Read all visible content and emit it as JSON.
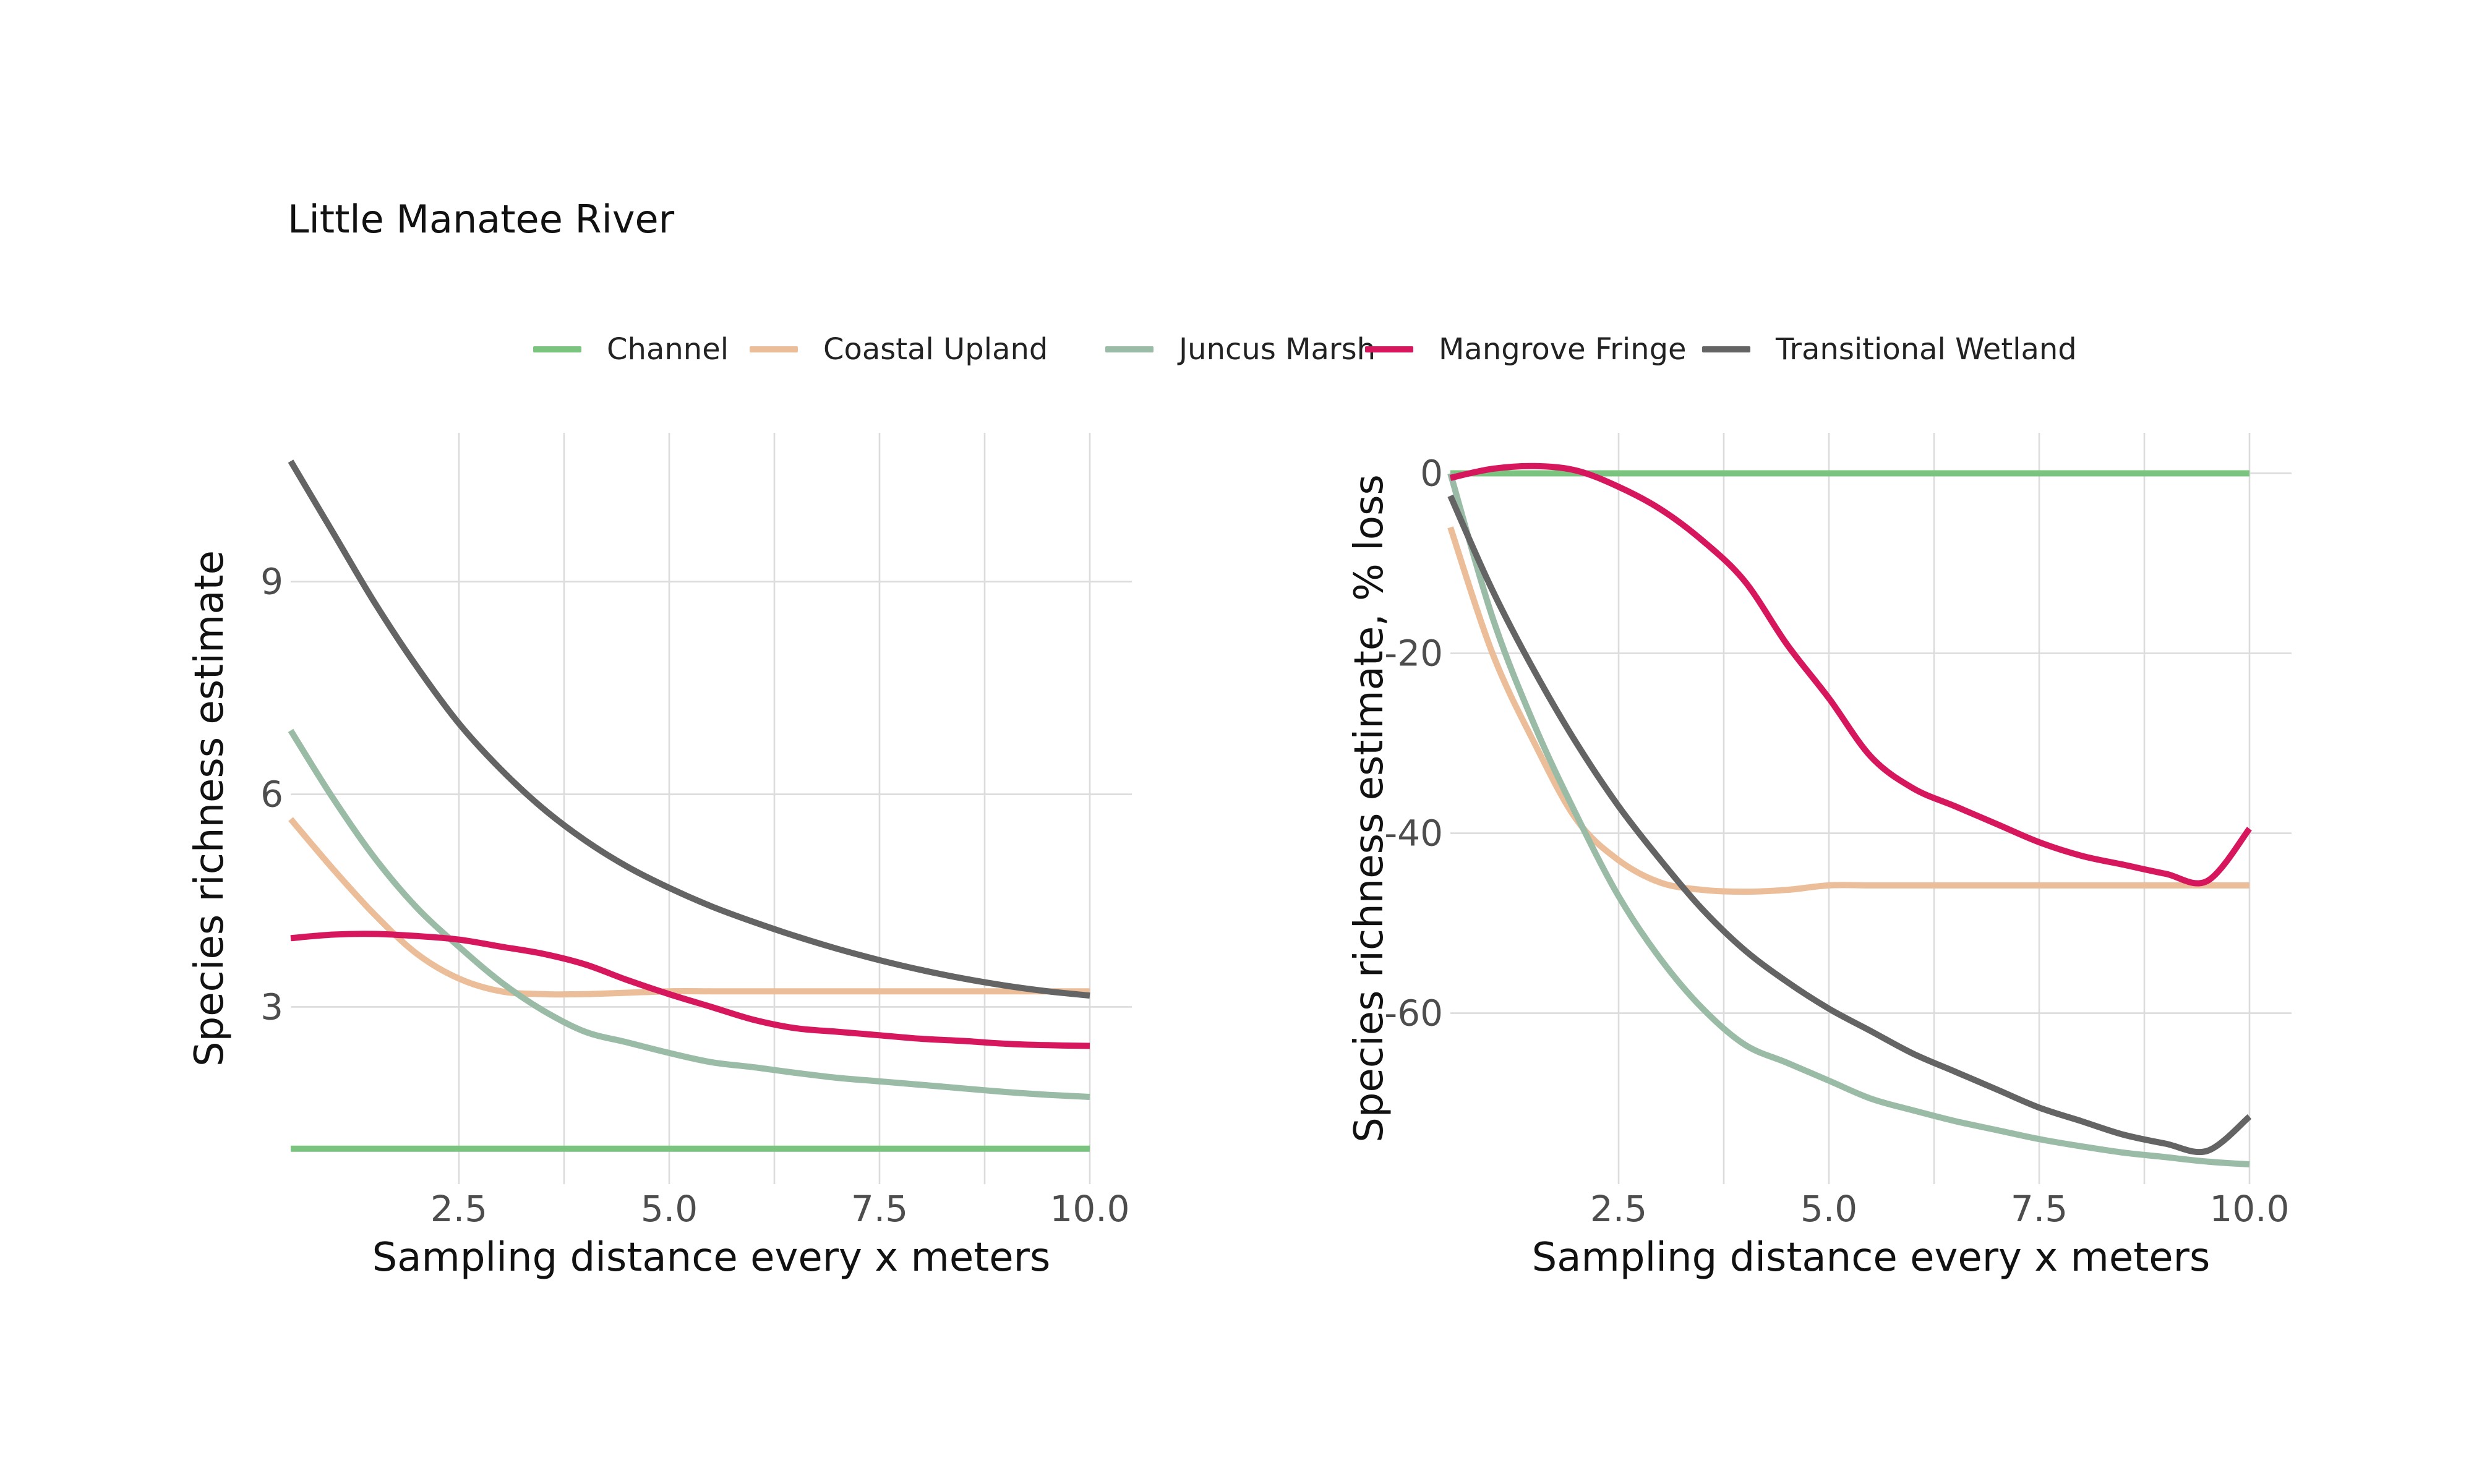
{
  "title": "Little Manatee River",
  "colors": {
    "Channel": "#7bc47f",
    "Coastal Upland": "#ebbd98",
    "Juncus Marsh": "#9abba5",
    "Mangrove Fringe": "#d6175e",
    "Transitional Wetland": "#646464"
  },
  "legend": [
    "Channel",
    "Coastal Upland",
    "Juncus Marsh",
    "Mangrove Fringe",
    "Transitional Wetland"
  ],
  "chart_data": [
    {
      "type": "line",
      "xlabel": "Sampling distance every x meters",
      "ylabel": "Species richness estimate",
      "xlim": [
        0.5,
        10.5
      ],
      "ylim": [
        0.5,
        11.1
      ],
      "xticks": [
        "2.5",
        "5.0",
        "7.5",
        "10.0"
      ],
      "yticks": [
        "3",
        "6",
        "9"
      ],
      "grid": true,
      "x": [
        0.5,
        1,
        1.5,
        2,
        2.5,
        3,
        3.5,
        4,
        4.5,
        5,
        5.5,
        6,
        6.5,
        7,
        7.5,
        8,
        8.5,
        9,
        9.5,
        10
      ],
      "series": [
        {
          "name": "Channel",
          "values": [
            1,
            1,
            1,
            1,
            1,
            1,
            1,
            1,
            1,
            1,
            1,
            1,
            1,
            1,
            1,
            1,
            1,
            1,
            1,
            1
          ]
        },
        {
          "name": "Coastal Upland",
          "values": [
            5.65,
            4.95,
            4.3,
            3.75,
            3.4,
            3.22,
            3.18,
            3.18,
            3.2,
            3.22,
            3.22,
            3.22,
            3.22,
            3.22,
            3.22,
            3.22,
            3.22,
            3.22,
            3.22,
            3.22
          ]
        },
        {
          "name": "Juncus Marsh",
          "values": [
            6.9,
            5.95,
            5.1,
            4.4,
            3.85,
            3.35,
            2.95,
            2.65,
            2.5,
            2.35,
            2.22,
            2.15,
            2.07,
            2.0,
            1.95,
            1.9,
            1.85,
            1.8,
            1.76,
            1.73
          ]
        },
        {
          "name": "Mangrove Fringe",
          "values": [
            3.97,
            4.02,
            4.03,
            4.0,
            3.95,
            3.85,
            3.75,
            3.6,
            3.38,
            3.18,
            3.0,
            2.82,
            2.7,
            2.65,
            2.6,
            2.55,
            2.52,
            2.48,
            2.46,
            2.45
          ]
        },
        {
          "name": "Transitional Wetland",
          "values": [
            10.7,
            9.7,
            8.7,
            7.8,
            7.0,
            6.35,
            5.8,
            5.35,
            4.98,
            4.68,
            4.42,
            4.2,
            4.0,
            3.82,
            3.66,
            3.52,
            3.4,
            3.3,
            3.22,
            3.16
          ]
        }
      ]
    },
    {
      "type": "line",
      "xlabel": "Sampling distance every x meters",
      "ylabel": "Species richness estimate, % loss",
      "xlim": [
        0.5,
        10.5
      ],
      "ylim": [
        -79,
        4.5
      ],
      "xticks": [
        "2.5",
        "5.0",
        "7.5",
        "10.0"
      ],
      "yticks": [
        "0",
        "-20",
        "-40",
        "-60"
      ],
      "grid": true,
      "x": [
        0.5,
        1,
        1.5,
        2,
        2.5,
        3,
        3.5,
        4,
        4.5,
        5,
        5.5,
        6,
        6.5,
        7,
        7.5,
        8,
        8.5,
        9,
        9.5,
        10
      ],
      "series": [
        {
          "name": "Channel",
          "values": [
            0,
            0,
            0,
            0,
            0,
            0,
            0,
            0,
            0,
            0,
            0,
            0,
            0,
            0,
            0,
            0,
            0,
            0,
            0,
            0
          ]
        },
        {
          "name": "Coastal Upland",
          "values": [
            -6,
            -20,
            -30,
            -38.5,
            -43,
            -45.5,
            -46.3,
            -46.5,
            -46.3,
            -45.8,
            -45.8,
            -45.8,
            -45.8,
            -45.8,
            -45.8,
            -45.8,
            -45.8,
            -45.8,
            -45.8,
            -45.8
          ]
        },
        {
          "name": "Juncus Marsh",
          "values": [
            0,
            -16,
            -28,
            -38,
            -47,
            -54,
            -59.5,
            -63.5,
            -65.5,
            -67.5,
            -69.5,
            -70.8,
            -72,
            -73,
            -74,
            -74.8,
            -75.5,
            -76,
            -76.5,
            -76.8
          ]
        },
        {
          "name": "Mangrove Fringe",
          "values": [
            -0.5,
            0.5,
            0.8,
            0.3,
            -1.5,
            -4,
            -7.5,
            -12,
            -19,
            -25,
            -31.5,
            -35,
            -37,
            -39,
            -41,
            -42.5,
            -43.5,
            -44.5,
            -45.3,
            -39.5
          ]
        },
        {
          "name": "Transitional Wetland",
          "values": [
            -2.5,
            -13,
            -22,
            -30,
            -37,
            -43,
            -48.5,
            -53,
            -56.5,
            -59.5,
            -62,
            -64.5,
            -66.5,
            -68.5,
            -70.5,
            -72,
            -73.5,
            -74.5,
            -75.3,
            -71.5
          ]
        }
      ]
    }
  ]
}
